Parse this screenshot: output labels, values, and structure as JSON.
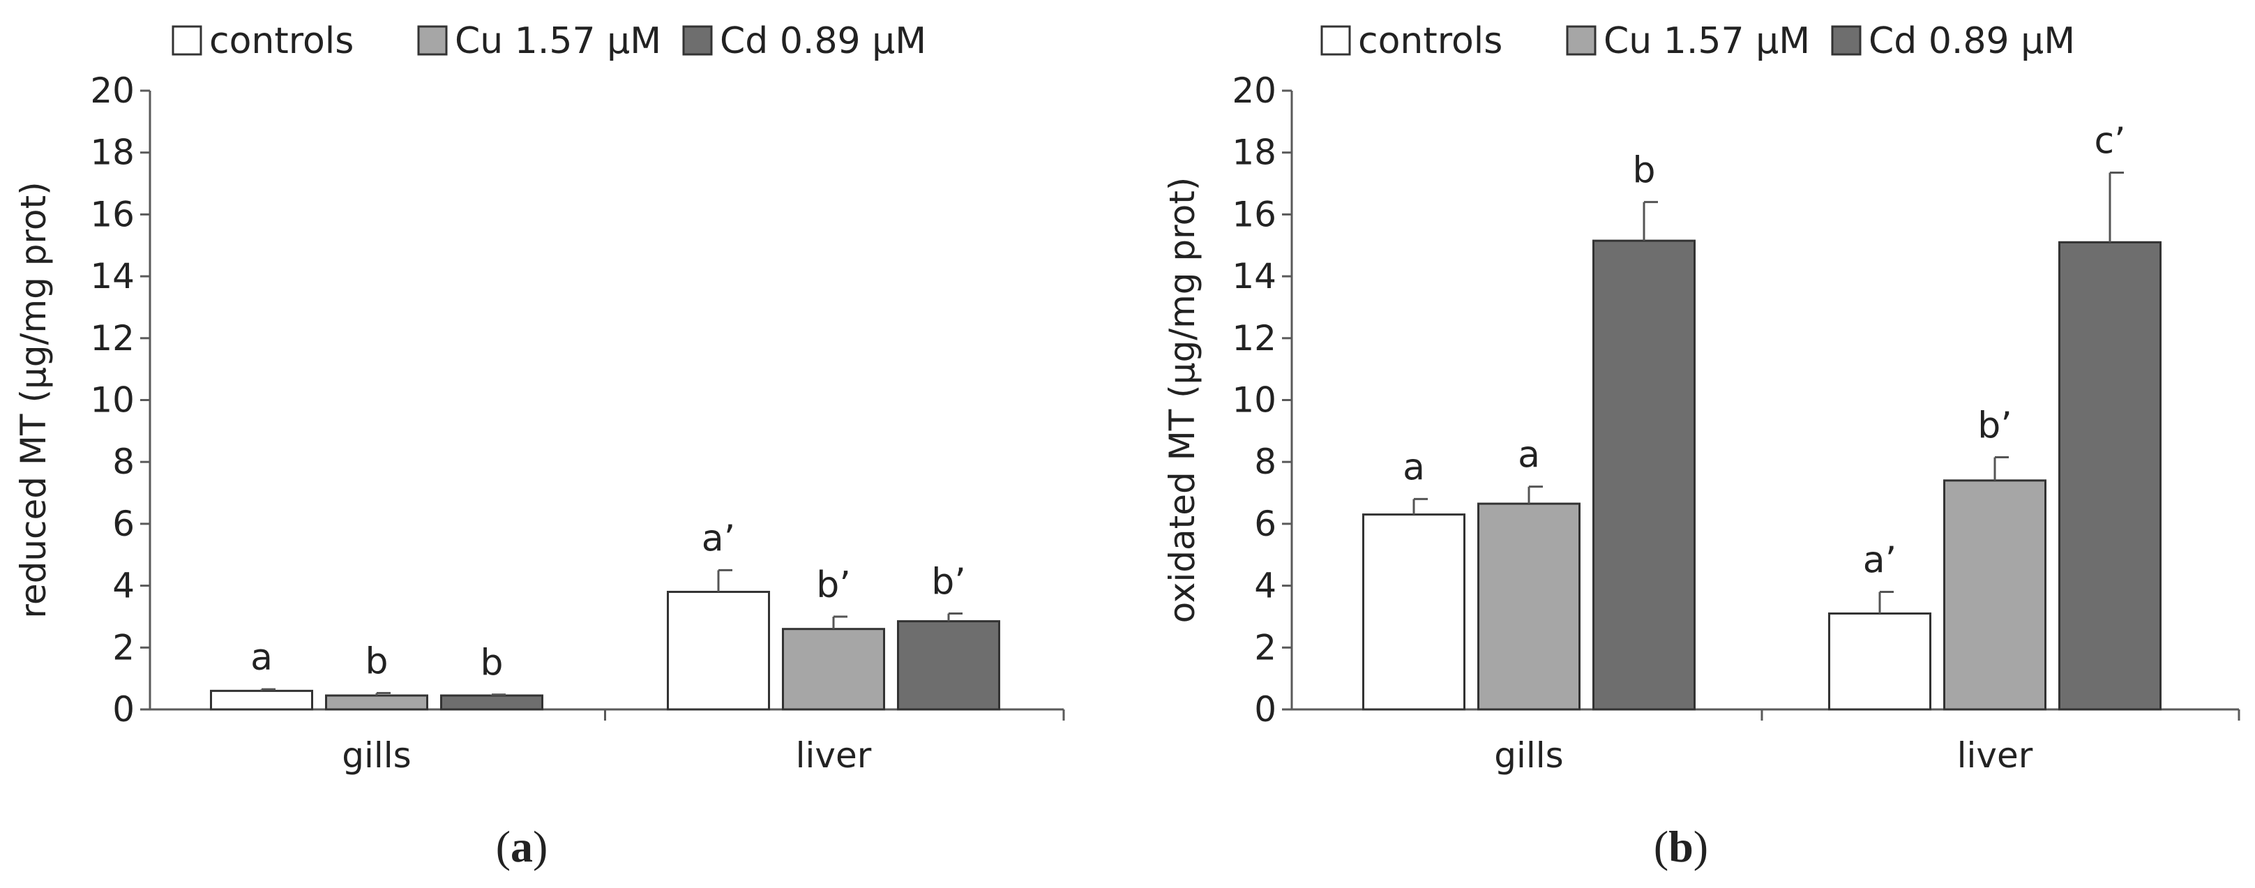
{
  "colors": {
    "controls": "#ffffff",
    "cu": "#a6a6a6",
    "cd": "#6e6e6e",
    "axis": "#5a5a5a",
    "text": "#222222"
  },
  "chart_data": [
    {
      "type": "bar",
      "panel_label": "a",
      "title": "",
      "xlabel": "",
      "ylabel": "reduced MT (µg/mg prot)",
      "categories": [
        "gills",
        "liver"
      ],
      "ylim": [
        0,
        20
      ],
      "yticks": [
        "0",
        "2",
        "4",
        "6",
        "8",
        "10",
        "12",
        "14",
        "16",
        "18",
        "20"
      ],
      "grid": false,
      "legend_position": "top",
      "series": [
        {
          "name": "controls",
          "values": [
            0.6,
            3.8
          ],
          "errors": [
            0.05,
            0.7
          ],
          "labels": [
            "a",
            "a’"
          ]
        },
        {
          "name": "Cu 1.57 µM",
          "values": [
            0.45,
            2.6
          ],
          "errors": [
            0.08,
            0.4
          ],
          "labels": [
            "b",
            "b’"
          ]
        },
        {
          "name": "Cd 0.89 µM",
          "values": [
            0.45,
            2.85
          ],
          "errors": [
            0.03,
            0.25
          ],
          "labels": [
            "b",
            "b’"
          ]
        }
      ]
    },
    {
      "type": "bar",
      "panel_label": "b",
      "title": "",
      "xlabel": "",
      "ylabel": "oxidated MT (µg/mg prot)",
      "categories": [
        "gills",
        "liver"
      ],
      "ylim": [
        0,
        20
      ],
      "yticks": [
        "0",
        "2",
        "4",
        "6",
        "8",
        "10",
        "12",
        "14",
        "16",
        "18",
        "20"
      ],
      "grid": false,
      "legend_position": "top",
      "series": [
        {
          "name": "controls",
          "values": [
            6.3,
            3.1
          ],
          "errors": [
            0.5,
            0.7
          ],
          "labels": [
            "a",
            "a’"
          ]
        },
        {
          "name": "Cu 1.57 µM",
          "values": [
            6.65,
            7.4
          ],
          "errors": [
            0.55,
            0.75
          ],
          "labels": [
            "a",
            "b’"
          ]
        },
        {
          "name": "Cd 0.89 µM",
          "values": [
            15.15,
            15.1
          ],
          "errors": [
            1.25,
            2.25
          ],
          "labels": [
            "b",
            "c’"
          ]
        }
      ]
    }
  ]
}
